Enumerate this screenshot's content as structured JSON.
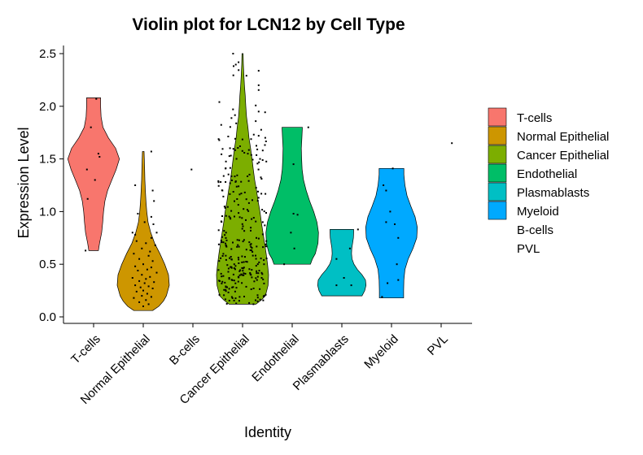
{
  "chart_data": {
    "type": "violin",
    "title": "Violin plot for LCN12 by Cell Type",
    "xlabel": "Identity",
    "ylabel": "Expression Level",
    "ylim": [
      -0.05,
      2.6
    ],
    "yticks": [
      "0.0",
      "0.5",
      "1.0",
      "1.5",
      "2.0",
      "2.5"
    ],
    "grid": false,
    "legend_position": "right",
    "categories": [
      "T-cells",
      "Normal Epithelial",
      "B-cells",
      "Cancer Epithelial",
      "Endothelial",
      "Plasmablasts",
      "Myeloid",
      "PVL"
    ],
    "legend": [
      {
        "label": "T-cells",
        "color": "#F8766D"
      },
      {
        "label": "Normal Epithelial",
        "color": "#CD9600"
      },
      {
        "label": "Cancer Epithelial",
        "color": "#7CAE00"
      },
      {
        "label": "Endothelial",
        "color": "#00BE67"
      },
      {
        "label": "Plasmablasts",
        "color": "#00BFC4"
      },
      {
        "label": "Myeloid",
        "color": "#00A9FF"
      },
      {
        "label": "B-cells",
        "color": null
      },
      {
        "label": "PVL",
        "color": null
      }
    ],
    "violins": [
      {
        "category": "T-cells",
        "color": "#F8766D",
        "min": 0.63,
        "max": 2.08,
        "profile": [
          [
            0.63,
            0.18
          ],
          [
            0.7,
            0.22
          ],
          [
            0.8,
            0.3
          ],
          [
            0.9,
            0.34
          ],
          [
            1.0,
            0.37
          ],
          [
            1.1,
            0.42
          ],
          [
            1.2,
            0.52
          ],
          [
            1.3,
            0.68
          ],
          [
            1.4,
            0.84
          ],
          [
            1.5,
            0.96
          ],
          [
            1.6,
            0.82
          ],
          [
            1.7,
            0.55
          ],
          [
            1.8,
            0.35
          ],
          [
            1.9,
            0.28
          ],
          [
            2.0,
            0.26
          ],
          [
            2.08,
            0.26
          ]
        ],
        "points": [
          [
            2.07,
            0.1
          ],
          [
            1.8,
            -0.1
          ],
          [
            1.55,
            0.18
          ],
          [
            1.52,
            0.22
          ],
          [
            1.4,
            -0.25
          ],
          [
            1.3,
            0.05
          ],
          [
            1.12,
            -0.22
          ],
          [
            0.63,
            -0.3
          ]
        ]
      },
      {
        "category": "Normal Epithelial",
        "color": "#CD9600",
        "min": 0.06,
        "max": 1.57,
        "profile": [
          [
            0.06,
            0.35
          ],
          [
            0.1,
            0.58
          ],
          [
            0.15,
            0.75
          ],
          [
            0.2,
            0.86
          ],
          [
            0.3,
            0.97
          ],
          [
            0.4,
            0.94
          ],
          [
            0.5,
            0.8
          ],
          [
            0.6,
            0.62
          ],
          [
            0.7,
            0.42
          ],
          [
            0.8,
            0.28
          ],
          [
            0.9,
            0.18
          ],
          [
            1.0,
            0.13
          ],
          [
            1.1,
            0.1
          ],
          [
            1.2,
            0.08
          ],
          [
            1.3,
            0.06
          ],
          [
            1.4,
            0.05
          ],
          [
            1.5,
            0.04
          ],
          [
            1.57,
            0.03
          ]
        ],
        "points": [
          [
            1.57,
            0.3
          ],
          [
            1.25,
            -0.3
          ],
          [
            1.2,
            0.35
          ],
          [
            1.1,
            0.4
          ],
          [
            0.98,
            -0.2
          ],
          [
            0.95,
            0.3
          ],
          [
            0.9,
            0.05
          ],
          [
            0.88,
            0.38
          ],
          [
            0.8,
            -0.4
          ],
          [
            0.8,
            0.5
          ],
          [
            0.78,
            -0.3
          ],
          [
            0.75,
            0.3
          ],
          [
            0.72,
            -0.25
          ],
          [
            0.7,
            0.1
          ],
          [
            0.68,
            0.45
          ],
          [
            0.65,
            -0.05
          ],
          [
            0.62,
            0.25
          ],
          [
            0.6,
            -0.35
          ],
          [
            0.58,
            0.2
          ],
          [
            0.55,
            -0.15
          ],
          [
            0.53,
            0.35
          ],
          [
            0.5,
            0.0
          ],
          [
            0.48,
            -0.3
          ],
          [
            0.47,
            0.3
          ],
          [
            0.45,
            0.15
          ],
          [
            0.44,
            -0.2
          ],
          [
            0.42,
            0.5
          ],
          [
            0.4,
            -0.05
          ],
          [
            0.38,
            0.25
          ],
          [
            0.37,
            -0.4
          ],
          [
            0.36,
            0.1
          ],
          [
            0.34,
            -0.15
          ],
          [
            0.33,
            0.4
          ],
          [
            0.32,
            0.05
          ],
          [
            0.3,
            -0.3
          ],
          [
            0.29,
            0.2
          ],
          [
            0.28,
            -0.1
          ],
          [
            0.27,
            0.35
          ],
          [
            0.25,
            0.0
          ],
          [
            0.24,
            -0.25
          ],
          [
            0.22,
            0.15
          ],
          [
            0.2,
            -0.05
          ],
          [
            0.19,
            0.3
          ],
          [
            0.18,
            -0.35
          ],
          [
            0.16,
            0.1
          ],
          [
            0.14,
            -0.15
          ],
          [
            0.12,
            0.2
          ],
          [
            0.1,
            0.0
          ]
        ]
      },
      {
        "category": "B-cells",
        "color": null,
        "min": null,
        "max": null,
        "profile": [],
        "points": [
          [
            1.4,
            -0.05
          ]
        ]
      },
      {
        "category": "Cancer Epithelial",
        "color": "#7CAE00",
        "min": 0.12,
        "max": 2.5,
        "profile": [
          [
            0.12,
            0.5
          ],
          [
            0.16,
            0.7
          ],
          [
            0.2,
            0.85
          ],
          [
            0.3,
            0.95
          ],
          [
            0.4,
            0.97
          ],
          [
            0.5,
            0.93
          ],
          [
            0.6,
            0.88
          ],
          [
            0.7,
            0.82
          ],
          [
            0.8,
            0.76
          ],
          [
            0.9,
            0.7
          ],
          [
            1.0,
            0.65
          ],
          [
            1.1,
            0.58
          ],
          [
            1.2,
            0.52
          ],
          [
            1.3,
            0.45
          ],
          [
            1.4,
            0.4
          ],
          [
            1.5,
            0.35
          ],
          [
            1.6,
            0.3
          ],
          [
            1.7,
            0.24
          ],
          [
            1.8,
            0.2
          ],
          [
            1.9,
            0.15
          ],
          [
            2.0,
            0.12
          ],
          [
            2.1,
            0.1
          ],
          [
            2.2,
            0.07
          ],
          [
            2.3,
            0.05
          ],
          [
            2.4,
            0.03
          ],
          [
            2.5,
            0.02
          ]
        ],
        "points": []
      },
      {
        "category": "Endothelial",
        "color": "#00BE67",
        "min": 0.5,
        "max": 1.8,
        "profile": [
          [
            0.5,
            0.68
          ],
          [
            0.55,
            0.75
          ],
          [
            0.6,
            0.86
          ],
          [
            0.7,
            0.96
          ],
          [
            0.8,
            0.98
          ],
          [
            0.9,
            0.92
          ],
          [
            1.0,
            0.8
          ],
          [
            1.1,
            0.65
          ],
          [
            1.2,
            0.52
          ],
          [
            1.3,
            0.42
          ],
          [
            1.4,
            0.37
          ],
          [
            1.5,
            0.35
          ],
          [
            1.6,
            0.34
          ],
          [
            1.7,
            0.36
          ],
          [
            1.8,
            0.38
          ]
        ],
        "points": [
          [
            1.8,
            0.6
          ],
          [
            1.45,
            0.05
          ],
          [
            0.98,
            0.05
          ],
          [
            0.97,
            0.2
          ],
          [
            0.8,
            -0.05
          ],
          [
            0.65,
            0.08
          ],
          [
            0.5,
            -0.3
          ]
        ]
      },
      {
        "category": "Plasmablasts",
        "color": "#00BFC4",
        "min": 0.2,
        "max": 0.83,
        "profile": [
          [
            0.2,
            0.75
          ],
          [
            0.25,
            0.85
          ],
          [
            0.3,
            0.9
          ],
          [
            0.35,
            0.88
          ],
          [
            0.4,
            0.75
          ],
          [
            0.45,
            0.58
          ],
          [
            0.5,
            0.45
          ],
          [
            0.55,
            0.38
          ],
          [
            0.6,
            0.36
          ],
          [
            0.65,
            0.37
          ],
          [
            0.7,
            0.4
          ],
          [
            0.75,
            0.43
          ],
          [
            0.8,
            0.44
          ],
          [
            0.83,
            0.44
          ]
        ],
        "points": [
          [
            0.83,
            0.6
          ],
          [
            0.65,
            0.3
          ],
          [
            0.55,
            -0.2
          ],
          [
            0.37,
            0.08
          ],
          [
            0.3,
            -0.2
          ],
          [
            0.3,
            0.35
          ]
        ]
      },
      {
        "category": "Myeloid",
        "color": "#00A9FF",
        "min": 0.18,
        "max": 1.41,
        "profile": [
          [
            0.18,
            0.45
          ],
          [
            0.25,
            0.45
          ],
          [
            0.35,
            0.46
          ],
          [
            0.45,
            0.5
          ],
          [
            0.55,
            0.62
          ],
          [
            0.65,
            0.8
          ],
          [
            0.75,
            0.94
          ],
          [
            0.85,
            0.96
          ],
          [
            0.95,
            0.88
          ],
          [
            1.05,
            0.72
          ],
          [
            1.15,
            0.58
          ],
          [
            1.25,
            0.5
          ],
          [
            1.35,
            0.46
          ],
          [
            1.41,
            0.46
          ]
        ],
        "points": [
          [
            1.41,
            0.05
          ],
          [
            1.25,
            -0.3
          ],
          [
            1.2,
            -0.2
          ],
          [
            1.0,
            -0.05
          ],
          [
            0.9,
            -0.2
          ],
          [
            0.88,
            0.12
          ],
          [
            0.75,
            0.25
          ],
          [
            0.5,
            0.2
          ],
          [
            0.35,
            0.25
          ],
          [
            0.32,
            -0.15
          ],
          [
            0.19,
            -0.35
          ]
        ]
      },
      {
        "category": "PVL",
        "color": null,
        "min": null,
        "max": null,
        "profile": [],
        "points": [
          [
            1.65,
            0.4
          ]
        ]
      }
    ]
  }
}
